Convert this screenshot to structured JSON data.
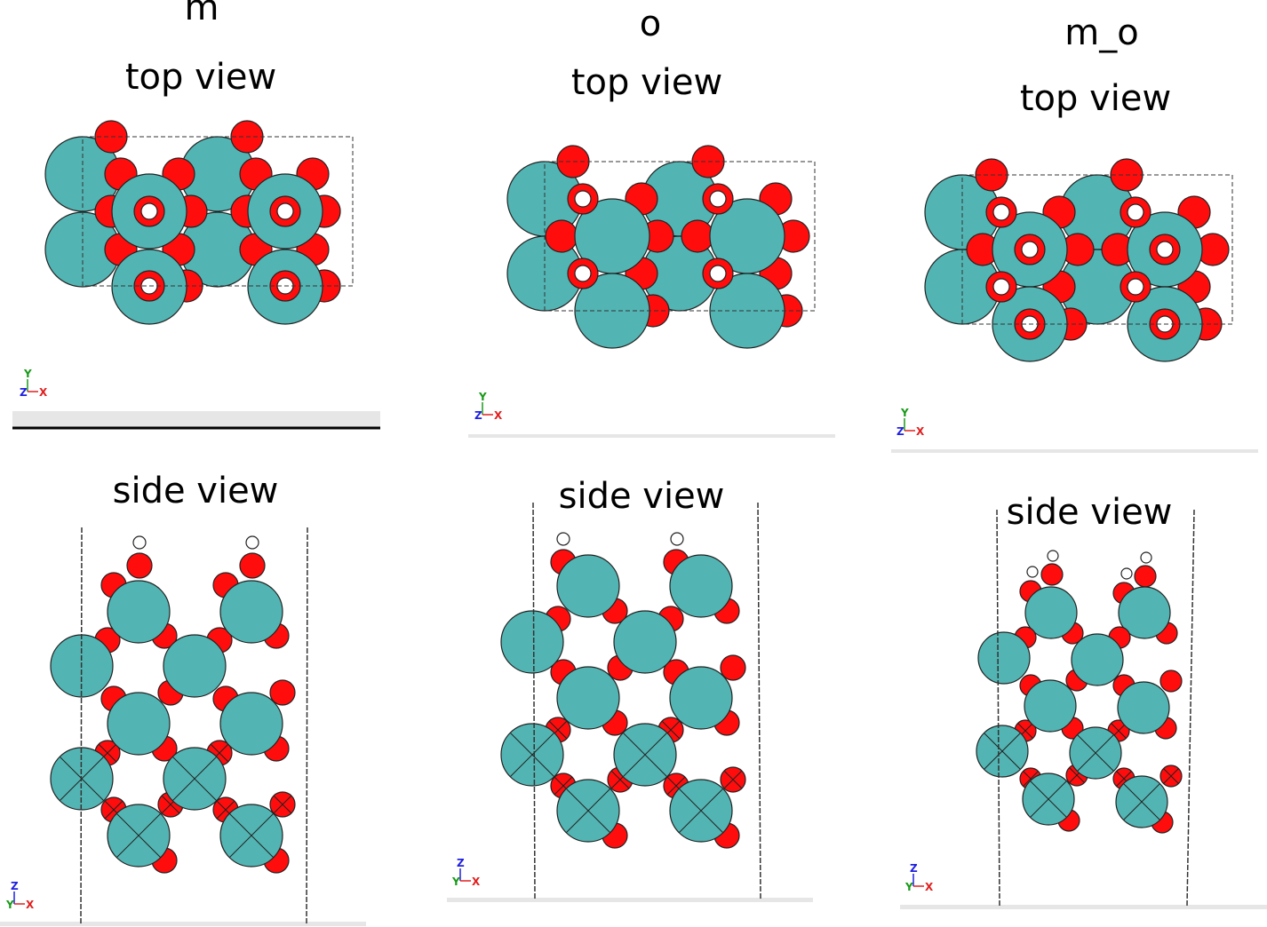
{
  "panels": [
    {
      "title": "m",
      "top_label": "top view",
      "side_label": "side view"
    },
    {
      "title": "o",
      "top_label": "top view",
      "side_label": "side view"
    },
    {
      "title": "m_o",
      "top_label": "top view",
      "side_label": "side view"
    }
  ],
  "axes": {
    "top": {
      "up": "Y",
      "out": "Z",
      "right": "X"
    },
    "side": {
      "up": "Z",
      "out": "Y",
      "right": "X"
    }
  },
  "colors": {
    "metal": "#52b5b3",
    "oxygen": "#ff0d0d",
    "hydrogen": "#ffffff",
    "outline": "#222222",
    "x_axis": "#e02020",
    "y_axis": "#1a9a1a",
    "z_axis": "#2020e0"
  }
}
